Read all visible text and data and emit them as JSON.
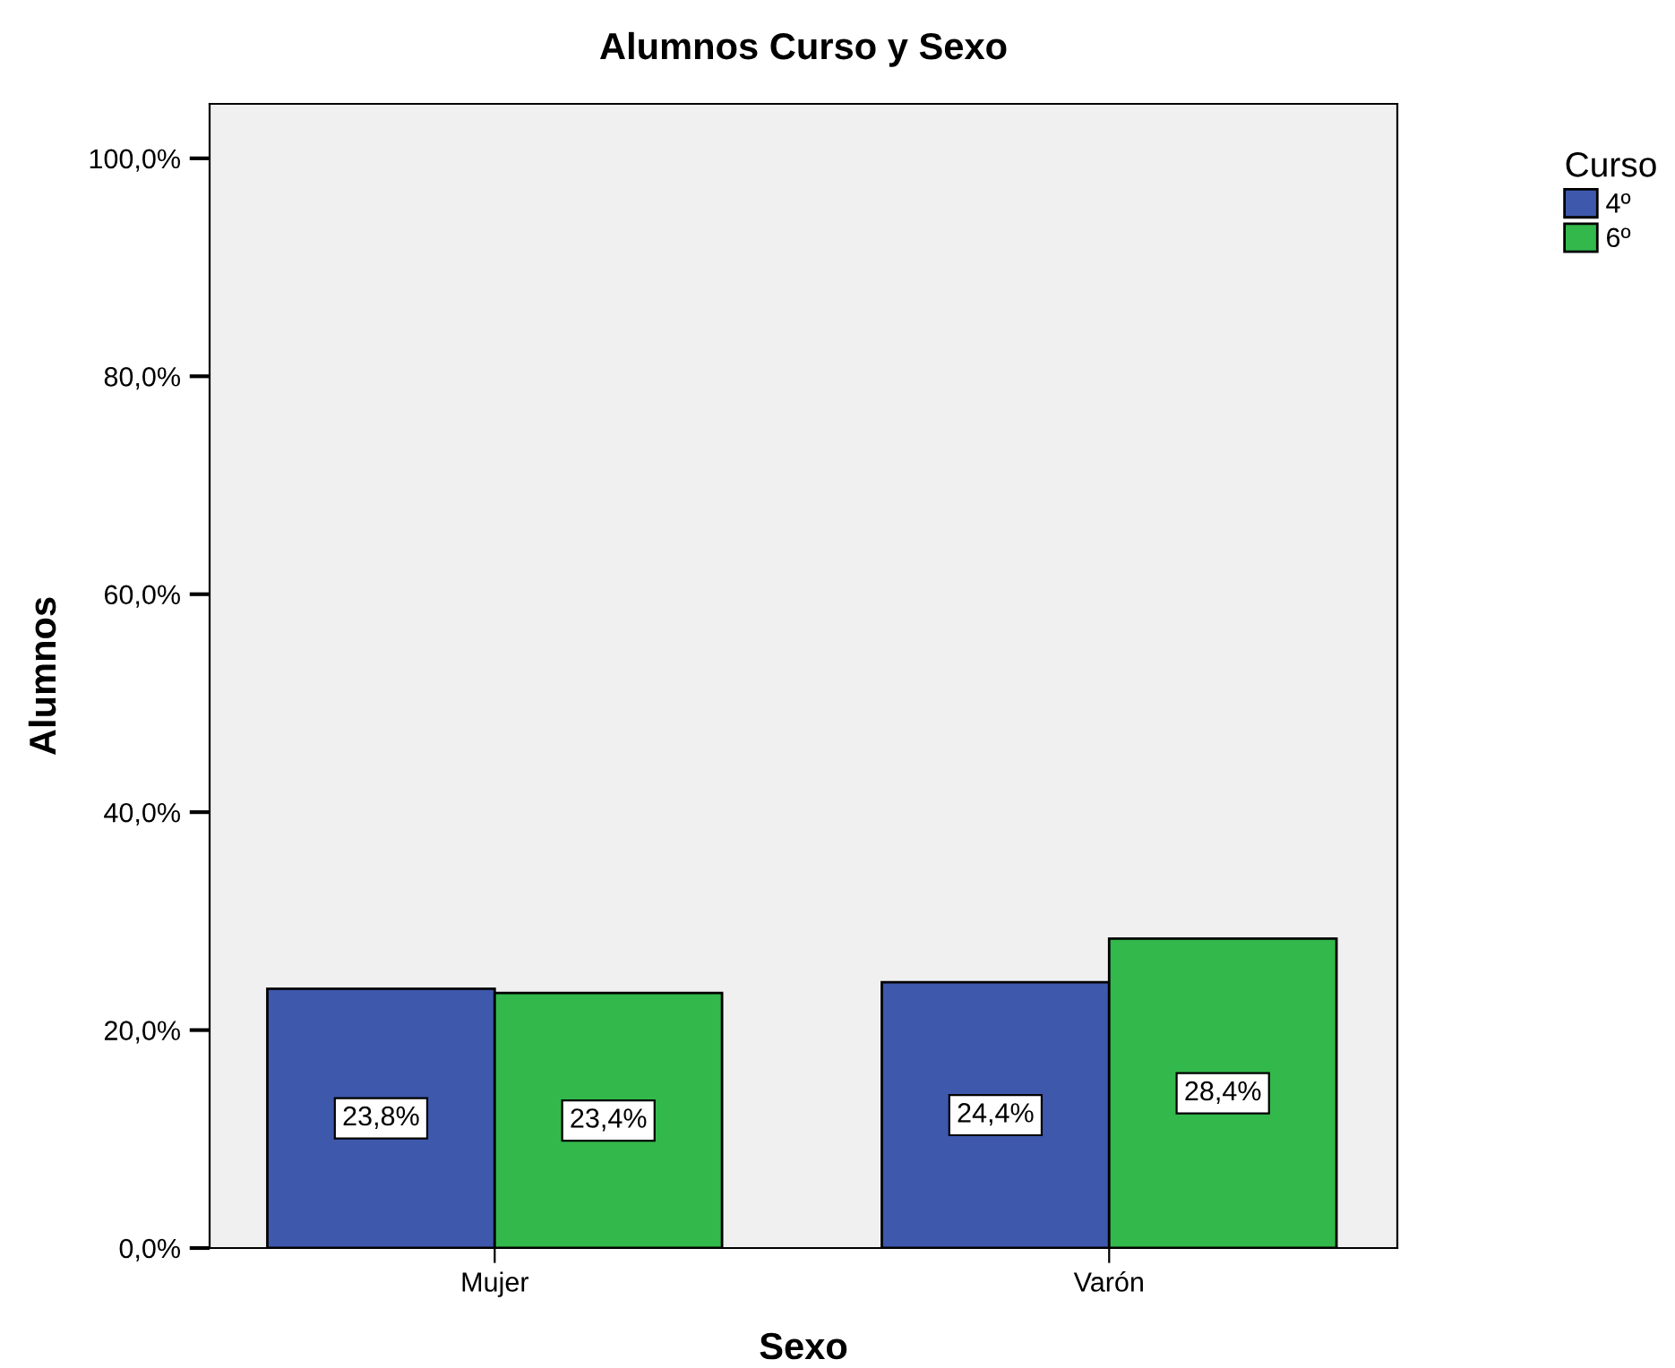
{
  "chart_data": {
    "type": "bar",
    "title": "Alumnos Curso y Sexo",
    "xlabel": "Sexo",
    "ylabel": "Alumnos",
    "legend_title": "Curso",
    "categories": [
      "Mujer",
      "Varón"
    ],
    "series": [
      {
        "name": "4º",
        "color": "#3e58ac",
        "values": [
          23.8,
          24.4
        ],
        "value_labels": [
          "23,8%",
          "24,4%"
        ]
      },
      {
        "name": "6º",
        "color": "#33b84b",
        "values": [
          23.4,
          28.4
        ],
        "value_labels": [
          "23,4%",
          "28,4%"
        ]
      }
    ],
    "ylim": [
      0,
      105
    ],
    "yticks": [
      {
        "value": 0,
        "label": "0,0%"
      },
      {
        "value": 20,
        "label": "20,0%"
      },
      {
        "value": 40,
        "label": "40,0%"
      },
      {
        "value": 60,
        "label": "60,0%"
      },
      {
        "value": 80,
        "label": "80,0%"
      },
      {
        "value": 100,
        "label": "100,0%"
      }
    ],
    "grid": false,
    "legend": "right"
  }
}
